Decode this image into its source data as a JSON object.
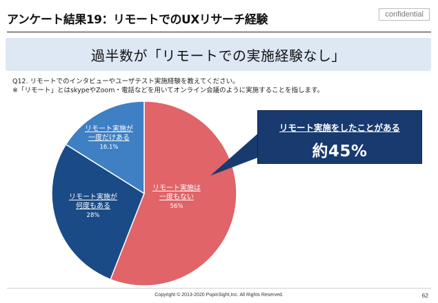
{
  "header": {
    "title": "アンケート結果19：リモートでのUXリサーチ経験",
    "confidential": "confidential"
  },
  "banner": {
    "text": "過半数が「リモートでの実施経験なし」"
  },
  "question": {
    "line1": "Q12. リモートでのインタビューやユーザテスト実施経験を教えてください。",
    "line2": "※「リモート」とはskypeやZoom・電話などを用いてオンライン会議のように実施することを指します。"
  },
  "callout": {
    "subtitle": "リモート実施をしたことがある",
    "value": "約45%"
  },
  "footer": {
    "copyright": "Copyright © 2013-2020 PopinSight,Inc. All Rights Reserved.",
    "page": "62"
  },
  "chart_data": {
    "type": "pie",
    "start": "12 o'clock, clockwise",
    "slices": [
      {
        "label_lines": [
          "リモート実施は",
          "一度もない"
        ],
        "value": 56,
        "value_label": "56%",
        "color": "#e06468"
      },
      {
        "label_lines": [
          "リモート実施が",
          "何度もある"
        ],
        "value": 28,
        "value_label": "28%",
        "color": "#1b4b86"
      },
      {
        "label_lines": [
          "リモート実施が",
          "一度だけある"
        ],
        "value": 16.1,
        "value_label": "16.1%",
        "color": "#3f7fc4"
      }
    ]
  }
}
